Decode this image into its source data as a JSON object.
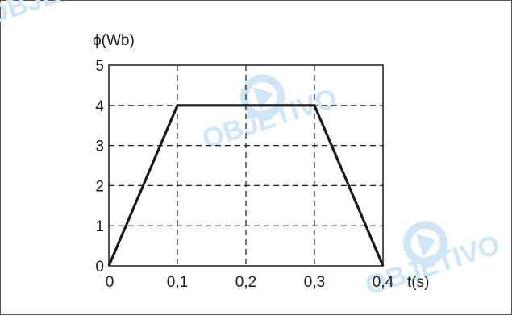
{
  "chart_data": {
    "type": "line",
    "title": "",
    "xlabel": "t(s)",
    "ylabel": "ϕ(Wb)",
    "x": [
      0,
      0.1,
      0.3,
      0.4
    ],
    "series": [
      {
        "values": [
          0,
          4,
          4,
          0
        ]
      }
    ],
    "xlim": [
      0,
      0.4
    ],
    "ylim": [
      0,
      5
    ],
    "x_ticks": [
      0.1,
      0.2,
      0.3,
      0.4
    ],
    "x_tick_labels": [
      "0,1",
      "0,2",
      "0,3",
      "0,4"
    ],
    "x_origin_label": "0",
    "y_ticks": [
      0,
      1,
      2,
      3,
      4,
      5
    ],
    "y_tick_labels": [
      "0",
      "1",
      "2",
      "3",
      "4",
      "5"
    ],
    "grid": "dashed",
    "legend": "none",
    "line_color": "#1a1a1a",
    "grid_color": "#1a1a1a"
  },
  "watermark": {
    "text": "OBJETIVO",
    "color": "#cfe6f7"
  }
}
